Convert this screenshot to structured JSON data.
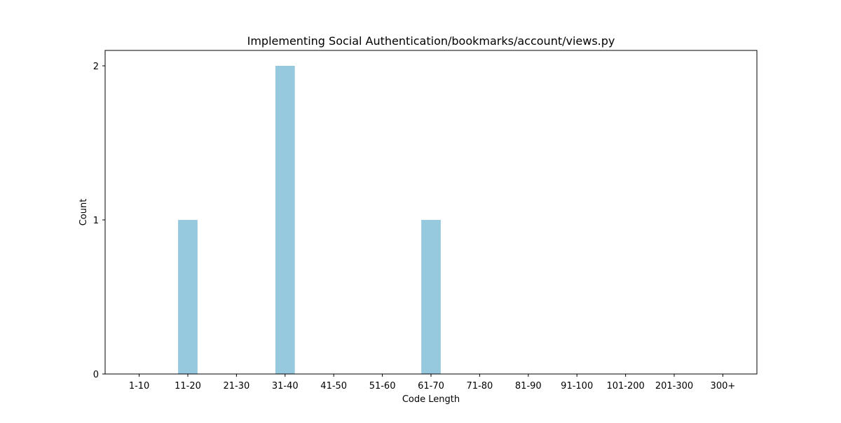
{
  "chart_data": {
    "type": "bar",
    "title": "Implementing Social Authentication/bookmarks/account/views.py",
    "xlabel": "Code Length",
    "ylabel": "Count",
    "categories": [
      "1-10",
      "11-20",
      "21-30",
      "31-40",
      "41-50",
      "51-60",
      "61-70",
      "71-80",
      "81-90",
      "91-100",
      "101-200",
      "201-300",
      "300+"
    ],
    "values": [
      0,
      1,
      0,
      2,
      0,
      0,
      1,
      0,
      0,
      0,
      0,
      0,
      0
    ],
    "yticks": [
      0,
      1,
      2
    ],
    "ylim": [
      0,
      2.1
    ],
    "bar_color": "#96c9de",
    "grid": false,
    "legend": "none"
  }
}
